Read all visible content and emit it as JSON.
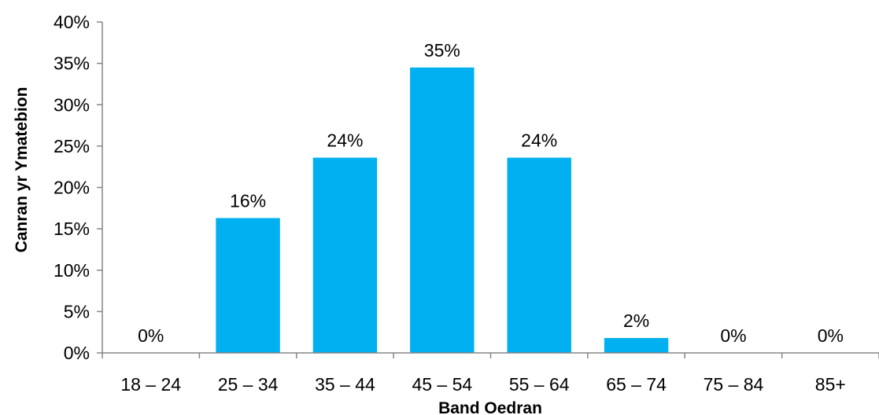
{
  "chart_data": {
    "type": "bar",
    "categories": [
      "18 – 24",
      "25 – 34",
      "35 – 44",
      "45 – 54",
      "55 – 64",
      "65 – 74",
      "75 – 84",
      "85+"
    ],
    "values": [
      0,
      16.3,
      23.6,
      34.5,
      23.6,
      1.8,
      0,
      0
    ],
    "data_labels": [
      "0%",
      "16%",
      "24%",
      "35%",
      "24%",
      "2%",
      "0%",
      "0%"
    ],
    "title": "",
    "xlabel": "Band Oedran",
    "ylabel": "Canran yr Ymatebion",
    "ylim": [
      0,
      40
    ],
    "yticks": [
      0,
      5,
      10,
      15,
      20,
      25,
      30,
      35,
      40
    ],
    "ytick_labels": [
      "0%",
      "5%",
      "10%",
      "15%",
      "20%",
      "25%",
      "30%",
      "35%",
      "40%"
    ],
    "y_unit": "%",
    "grid": false,
    "legend": "none",
    "bar_color": "#00b0f0"
  }
}
